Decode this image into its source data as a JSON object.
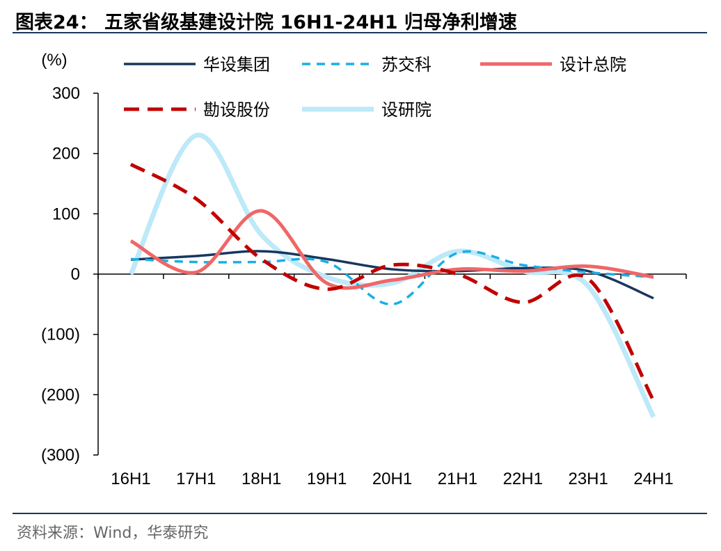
{
  "header": {
    "title": "图表24：  五家省级基建设计院 16H1-24H1 归母净利增速"
  },
  "footer": {
    "source": "资料来源：Wind，华泰研究"
  },
  "chart_data": {
    "type": "line",
    "title": "五家省级基建设计院 16H1-24H1 归母净利增速",
    "ylabel": "(%)",
    "xlabel": "",
    "ylim": [
      -300,
      300
    ],
    "yticks": [
      300,
      200,
      100,
      0,
      -100,
      -200,
      -300
    ],
    "ytick_labels": [
      "300",
      "200",
      "100",
      "0",
      "(100)",
      "(200)",
      "(300)"
    ],
    "categories": [
      "16H1",
      "17H1",
      "18H1",
      "19H1",
      "20H1",
      "21H1",
      "22H1",
      "23H1",
      "24H1"
    ],
    "grid": false,
    "legend_position": "top",
    "series": [
      {
        "name": "华设集团",
        "color": "#17375e",
        "dash": "solid",
        "width": 3.5,
        "values": [
          24,
          30,
          38,
          25,
          8,
          5,
          10,
          5,
          -40
        ]
      },
      {
        "name": "苏交科",
        "color": "#1aaee6",
        "dash": "dashed",
        "width": 3.5,
        "values": [
          25,
          20,
          20,
          20,
          -50,
          35,
          15,
          3,
          -5
        ]
      },
      {
        "name": "设计总院",
        "color": "#f06667",
        "dash": "solid",
        "width": 5,
        "values": [
          55,
          3,
          105,
          -15,
          -10,
          8,
          5,
          13,
          -5
        ]
      },
      {
        "name": "勘设股份",
        "color": "#c00000",
        "dash": "dashed-heavy",
        "width": 5,
        "values": [
          182,
          125,
          25,
          -25,
          15,
          0,
          -47,
          -8,
          -210
        ]
      },
      {
        "name": "设研院",
        "color": "#bde9f8",
        "dash": "solid",
        "width": 7,
        "values": [
          0,
          230,
          65,
          -5,
          -15,
          38,
          5,
          -20,
          -237
        ]
      }
    ]
  }
}
